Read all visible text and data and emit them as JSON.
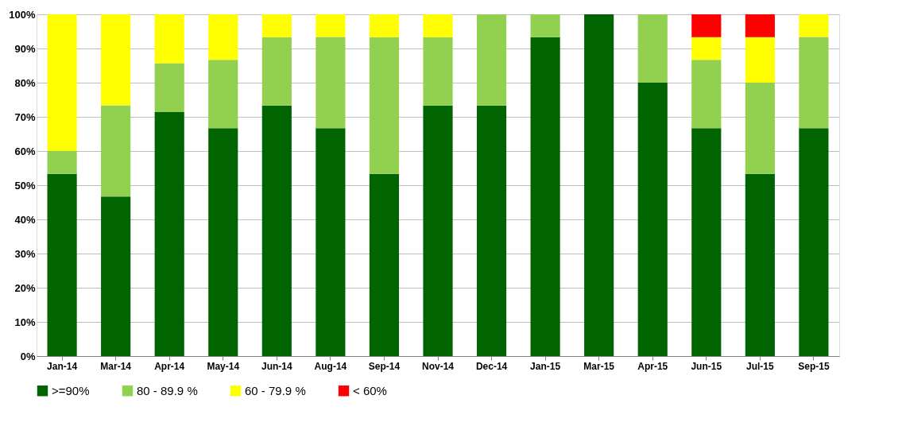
{
  "chart_data": {
    "type": "bar",
    "stacked": true,
    "categories": [
      "Jan-14",
      "Mar-14",
      "Apr-14",
      "May-14",
      "Jun-14",
      "Aug-14",
      "Sep-14",
      "Nov-14",
      "Dec-14",
      "Jan-15",
      "Mar-15",
      "Apr-15",
      "Jun-15",
      "Jul-15",
      "Sep-15"
    ],
    "series": [
      {
        "name": ">=90%",
        "color": "#006400",
        "values": [
          53.3,
          46.7,
          71.4,
          66.7,
          73.3,
          66.7,
          53.3,
          73.3,
          73.3,
          93.3,
          100,
          80,
          66.7,
          53.3,
          66.7
        ]
      },
      {
        "name": "80 - 89.9 %",
        "color": "#92d050",
        "values": [
          6.7,
          26.7,
          14.3,
          20,
          20,
          26.7,
          40,
          20,
          26.7,
          6.7,
          0,
          20,
          20,
          26.7,
          26.7
        ]
      },
      {
        "name": "60 - 79.9 %",
        "color": "#ffff00",
        "values": [
          40,
          26.6,
          14.3,
          13.3,
          6.7,
          6.6,
          6.7,
          6.7,
          0,
          0,
          0,
          0,
          6.6,
          13.3,
          6.6
        ]
      },
      {
        "name": "< 60%",
        "color": "#ff0000",
        "values": [
          0,
          0,
          0,
          0,
          0,
          0,
          0,
          0,
          0,
          0,
          0,
          0,
          6.7,
          6.7,
          0
        ]
      }
    ],
    "ylim": [
      0,
      100
    ],
    "yticks": [
      {
        "value": 0,
        "label": "0%"
      },
      {
        "value": 10,
        "label": "10%"
      },
      {
        "value": 20,
        "label": "20%"
      },
      {
        "value": 30,
        "label": "30%"
      },
      {
        "value": 40,
        "label": "40%"
      },
      {
        "value": 50,
        "label": "50%"
      },
      {
        "value": 60,
        "label": "60%"
      },
      {
        "value": 70,
        "label": "70%"
      },
      {
        "value": 80,
        "label": "80%"
      },
      {
        "value": 90,
        "label": "90%"
      },
      {
        "value": 100,
        "label": "100%"
      }
    ],
    "grid": "y",
    "legend": "bottom"
  }
}
